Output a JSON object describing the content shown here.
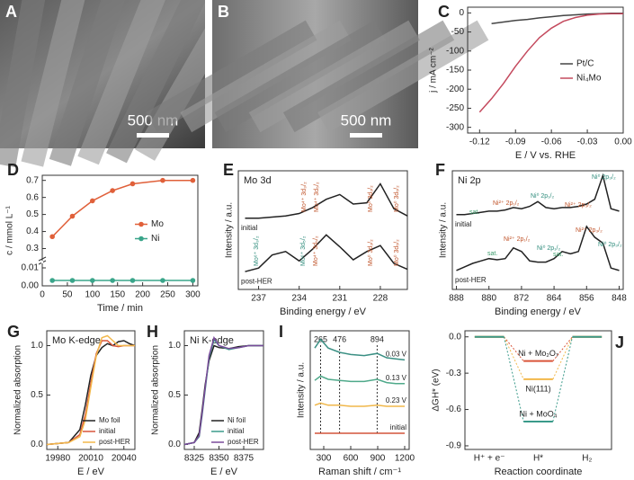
{
  "images": [
    {
      "panel": "A",
      "scale_bar": "500 nm"
    },
    {
      "panel": "B",
      "scale_bar": "500 nm"
    }
  ],
  "chart_data": [
    {
      "panel": "C",
      "type": "line",
      "xlabel": "E / V vs. RHE",
      "ylabel": "j / mA cm⁻²",
      "x": [
        -0.12,
        -0.11,
        -0.1,
        -0.09,
        -0.08,
        -0.07,
        -0.06,
        -0.05,
        -0.04,
        -0.03,
        -0.02,
        -0.01,
        0
      ],
      "series": [
        {
          "name": "Pt/C",
          "color": "#444444",
          "values": [
            null,
            -28,
            -24,
            -20,
            -17,
            -13,
            -10,
            -7,
            -5,
            -3,
            -2,
            -1,
            -1
          ]
        },
        {
          "name": "Ni₄Mo",
          "color": "#c44a5e",
          "values": [
            -260,
            -225,
            -185,
            -140,
            -100,
            -65,
            -40,
            -22,
            -12,
            -6,
            -3,
            -2,
            -2
          ]
        }
      ],
      "xlim": [
        -0.13,
        0
      ],
      "xticks": [
        -0.12,
        -0.09,
        -0.06,
        -0.03,
        {
          "value": 0,
          "label": "0.00"
        }
      ],
      "ylim": [
        -315,
        15
      ],
      "yticks": [
        0,
        -50,
        -100,
        -150,
        -200,
        -250,
        -300
      ],
      "legend": "center right"
    },
    {
      "panel": "D",
      "type": "line",
      "xlabel": "Time / min",
      "ylabel": "c / mmol L⁻¹",
      "x": [
        20,
        60,
        100,
        140,
        180,
        240,
        300
      ],
      "series": [
        {
          "name": "Mo",
          "color": "#e0603a",
          "values": [
            0.37,
            0.49,
            0.58,
            0.64,
            0.68,
            0.7,
            0.7
          ]
        },
        {
          "name": "Ni",
          "color": "#3aa58a",
          "values": [
            0.003,
            0.003,
            0.003,
            0.003,
            0.003,
            0.003,
            0.003
          ]
        }
      ],
      "point_markers": true,
      "xlim": [
        0,
        310
      ],
      "xticks": [
        0,
        50,
        100,
        150,
        200,
        250,
        300
      ],
      "ysegments": [
        {
          "lim": [
            0,
            0.012
          ],
          "ticks": [
            {
              "value": 0,
              "label": "0.00"
            },
            0.01
          ]
        },
        {
          "lim": [
            0.25,
            0.73
          ],
          "ticks": [
            0.3,
            0.4,
            0.5,
            0.6,
            0.7
          ]
        }
      ],
      "legend": "center right"
    },
    {
      "panel": "E",
      "type": "line",
      "note": "Mo 3d",
      "xlabel": "Binding energy / eV",
      "ylabel": "Intensity / a.u.",
      "x": [
        238,
        237,
        236,
        235,
        234,
        233,
        232,
        231,
        230,
        229,
        228,
        227,
        226
      ],
      "series": [
        {
          "name": "initial",
          "color": "#222222",
          "values": [
            6.0,
            6.0,
            6.1,
            6.2,
            6.4,
            6.9,
            7.6,
            8.0,
            7.2,
            7.3,
            8.9,
            6.8,
            6.2
          ]
        },
        {
          "name": "post-HER",
          "color": "#222222",
          "values": [
            1.5,
            1.8,
            2.9,
            3.2,
            2.4,
            3.4,
            4.6,
            3.6,
            2.5,
            3.2,
            3.7,
            2.2,
            1.7
          ]
        }
      ],
      "xlim": [
        238.5,
        226
      ],
      "xticks": [
        237,
        234,
        231,
        228
      ],
      "ylim": [
        0,
        10
      ],
      "legend": "inline left",
      "annotations": [
        {
          "text": "Mo⁴⁺ 3d₃/₂",
          "color": "#c0542a"
        },
        {
          "text": "Mo⁴⁺ 3d₅/₂",
          "color": "#c0542a"
        },
        {
          "text": "Mo⁰ 3d₃/₂",
          "color": "#c0542a"
        },
        {
          "text": "Mo⁰ 3d₅/₂",
          "color": "#c0542a"
        },
        {
          "text": "Mo⁶⁺ 3d₃/₂",
          "color": "#2f8c7c"
        },
        {
          "text": "Mo⁶⁺ 3d₅/₂",
          "color": "#2f8c7c"
        },
        {
          "text": "Mo⁴⁺ 3d₅/₂",
          "color": "#c0542a"
        },
        {
          "text": "Mo⁰ 3d₃/₂",
          "color": "#c0542a"
        },
        {
          "text": "Mo⁰ 3d₅/₂",
          "color": "#c0542a"
        }
      ]
    },
    {
      "panel": "F",
      "type": "line",
      "note": "Ni 2p",
      "xlabel": "Binding energy / eV",
      "ylabel": "Intensity / a.u.",
      "x": [
        888,
        886,
        884,
        882,
        880,
        878,
        876,
        874,
        872,
        870,
        868,
        866,
        864,
        862,
        860,
        858,
        856,
        854,
        852,
        850,
        848
      ],
      "series": [
        {
          "name": "initial",
          "color": "#222222",
          "values": [
            6.3,
            6.3,
            6.4,
            6.5,
            6.6,
            6.6,
            6.7,
            6.9,
            6.8,
            7.0,
            7.4,
            6.9,
            6.8,
            6.9,
            6.9,
            7.0,
            7.2,
            7.6,
            9.6,
            6.8,
            6.6
          ]
        },
        {
          "name": "post-HER",
          "color": "#222222",
          "values": [
            1.6,
            1.9,
            2.2,
            2.4,
            2.6,
            2.5,
            2.6,
            3.5,
            3.2,
            2.4,
            2.3,
            2.3,
            2.6,
            3.2,
            3.0,
            3.2,
            5.3,
            4.4,
            3.9,
            1.8,
            1.6
          ]
        }
      ],
      "xlim": [
        889,
        847
      ],
      "xticks": [
        888,
        880,
        872,
        864,
        856,
        848
      ],
      "ylim": [
        0,
        10
      ],
      "legend": "inline left",
      "annotations": [
        {
          "text": "sat.",
          "color": "#3a9a6a"
        },
        {
          "text": "Ni²⁺ 2p₁/₂",
          "color": "#c0542a"
        },
        {
          "text": "Ni⁰ 2p₁/₂",
          "color": "#2f8c7c"
        },
        {
          "text": "Ni²⁺ 2p₃/₂",
          "color": "#c0542a"
        },
        {
          "text": "Ni⁰ 2p₃/₂",
          "color": "#2f8c7c"
        },
        {
          "text": "sat.",
          "color": "#3a9a6a"
        },
        {
          "text": "Ni²⁺ 2p₁/₂",
          "color": "#c0542a"
        },
        {
          "text": "Ni⁰ 2p₁/₂",
          "color": "#2f8c7c"
        },
        {
          "text": "sat.",
          "color": "#3a9a6a"
        },
        {
          "text": "Ni²⁺ 2p₃/₂",
          "color": "#c0542a"
        },
        {
          "text": "Ni⁰ 2p₃/₂",
          "color": "#2f8c7c"
        }
      ]
    },
    {
      "panel": "G",
      "type": "line",
      "note": "Mo K-edge",
      "xlabel": "E / eV",
      "ylabel": "Normalized absorption",
      "x": [
        19970,
        19990,
        20000,
        20005,
        20010,
        20015,
        20020,
        20025,
        20030,
        20035,
        20040,
        20045,
        20050
      ],
      "series": [
        {
          "name": "Mo foil",
          "color": "#222222",
          "values": [
            0,
            0.02,
            0.15,
            0.4,
            0.7,
            0.9,
            0.98,
            1.02,
            1.0,
            1.04,
            1.05,
            1.02,
            1.0
          ]
        },
        {
          "name": "initial",
          "color": "#d9553a",
          "values": [
            0,
            0.02,
            0.1,
            0.3,
            0.62,
            0.92,
            1.05,
            1.05,
            1.0,
            0.99,
            1.0,
            1.0,
            1.0
          ]
        },
        {
          "name": "post-HER",
          "color": "#f2b84b",
          "values": [
            0,
            0.02,
            0.08,
            0.25,
            0.58,
            0.9,
            1.08,
            1.1,
            1.05,
            1.0,
            1.0,
            1.0,
            1.0
          ]
        }
      ],
      "xlim": [
        19970,
        20050
      ],
      "xticks": [
        19980,
        20010,
        20040
      ],
      "ylim": [
        -0.05,
        1.15
      ],
      "yticks": [
        {
          "value": 0,
          "label": "0.0"
        },
        0.5,
        {
          "value": 1,
          "label": "1.0"
        }
      ],
      "legend": "lower right"
    },
    {
      "panel": "H",
      "type": "line",
      "note": "Ni K-edge",
      "xlabel": "E / eV",
      "ylabel": "Normalized absorption",
      "x": [
        8315,
        8325,
        8330,
        8333,
        8336,
        8340,
        8345,
        8350,
        8360,
        8370,
        8380,
        8395
      ],
      "series": [
        {
          "name": "Ni foil",
          "color": "#222222",
          "values": [
            0,
            0.02,
            0.12,
            0.35,
            0.6,
            0.85,
            1.0,
            0.98,
            0.97,
            0.99,
            1.0,
            1.0
          ]
        },
        {
          "name": "initial",
          "color": "#3a9a8a",
          "values": [
            0,
            0.02,
            0.08,
            0.3,
            0.55,
            0.88,
            1.06,
            1.0,
            0.96,
            0.98,
            1.0,
            1.0
          ]
        },
        {
          "name": "post-HER",
          "color": "#7a4a9a",
          "values": [
            0,
            0.02,
            0.09,
            0.32,
            0.57,
            0.9,
            1.08,
            1.0,
            0.97,
            0.98,
            1.0,
            1.0
          ]
        }
      ],
      "xlim": [
        8315,
        8395
      ],
      "xticks": [
        8325,
        8350,
        8375
      ],
      "ylim": [
        -0.05,
        1.15
      ],
      "yticks": [
        {
          "value": 0,
          "label": "0.0"
        },
        0.5,
        {
          "value": 1,
          "label": "1.0"
        }
      ],
      "legend": "lower right"
    },
    {
      "panel": "I",
      "type": "line",
      "xlabel": "Raman shift / cm⁻¹",
      "ylabel": "Intensity / a.u.",
      "x": [
        200,
        265,
        350,
        476,
        600,
        750,
        894,
        1000,
        1100,
        1200
      ],
      "series": [
        {
          "name": "0.03 V",
          "color": "#3a8f83",
          "values": [
            9.4,
            10.2,
            9.4,
            9.0,
            8.8,
            8.7,
            8.9,
            8.5,
            8.4,
            8.3
          ]
        },
        {
          "name": "0.13 V",
          "color": "#4fa98a",
          "values": [
            6.4,
            6.8,
            6.5,
            6.4,
            6.3,
            6.3,
            6.5,
            6.2,
            6.1,
            6.1
          ]
        },
        {
          "name": "0.23 V",
          "color": "#f0b74a",
          "values": [
            4.1,
            4.3,
            4.1,
            4.1,
            4.0,
            4.0,
            4.1,
            4.0,
            4.0,
            4.0
          ]
        },
        {
          "name": "initial",
          "color": "#d3553a",
          "values": [
            1.5,
            1.5,
            1.5,
            1.5,
            1.5,
            1.5,
            1.5,
            1.5,
            1.5,
            1.5
          ]
        }
      ],
      "markers": [
        265,
        476,
        894
      ],
      "xlim": [
        150,
        1250
      ],
      "xticks": [
        300,
        600,
        900,
        1200
      ],
      "ylim": [
        0,
        11
      ],
      "legend": "inline right"
    },
    {
      "panel": "J",
      "type": "energy_diagram",
      "xlabel": "Reaction coordinate",
      "ylabel": "ΔGH* (eV)",
      "categories": [
        "H⁺ + e⁻",
        "H*",
        "H₂"
      ],
      "series": [
        {
          "name": "Ni + Mo₂O₇",
          "color": "#d9553a",
          "values": [
            0,
            -0.2,
            0
          ]
        },
        {
          "name": "Ni(111)",
          "color": "#f2b84b",
          "values": [
            0,
            -0.35,
            0
          ]
        },
        {
          "name": "Ni + MoO₄",
          "color": "#3a9a8a",
          "values": [
            0,
            -0.7,
            0
          ]
        }
      ],
      "ylim": [
        -0.93,
        0.05
      ],
      "yticks": [
        {
          "value": 0,
          "label": "0.0"
        },
        -0.3,
        -0.6,
        -0.9
      ],
      "legend": "inline"
    }
  ]
}
